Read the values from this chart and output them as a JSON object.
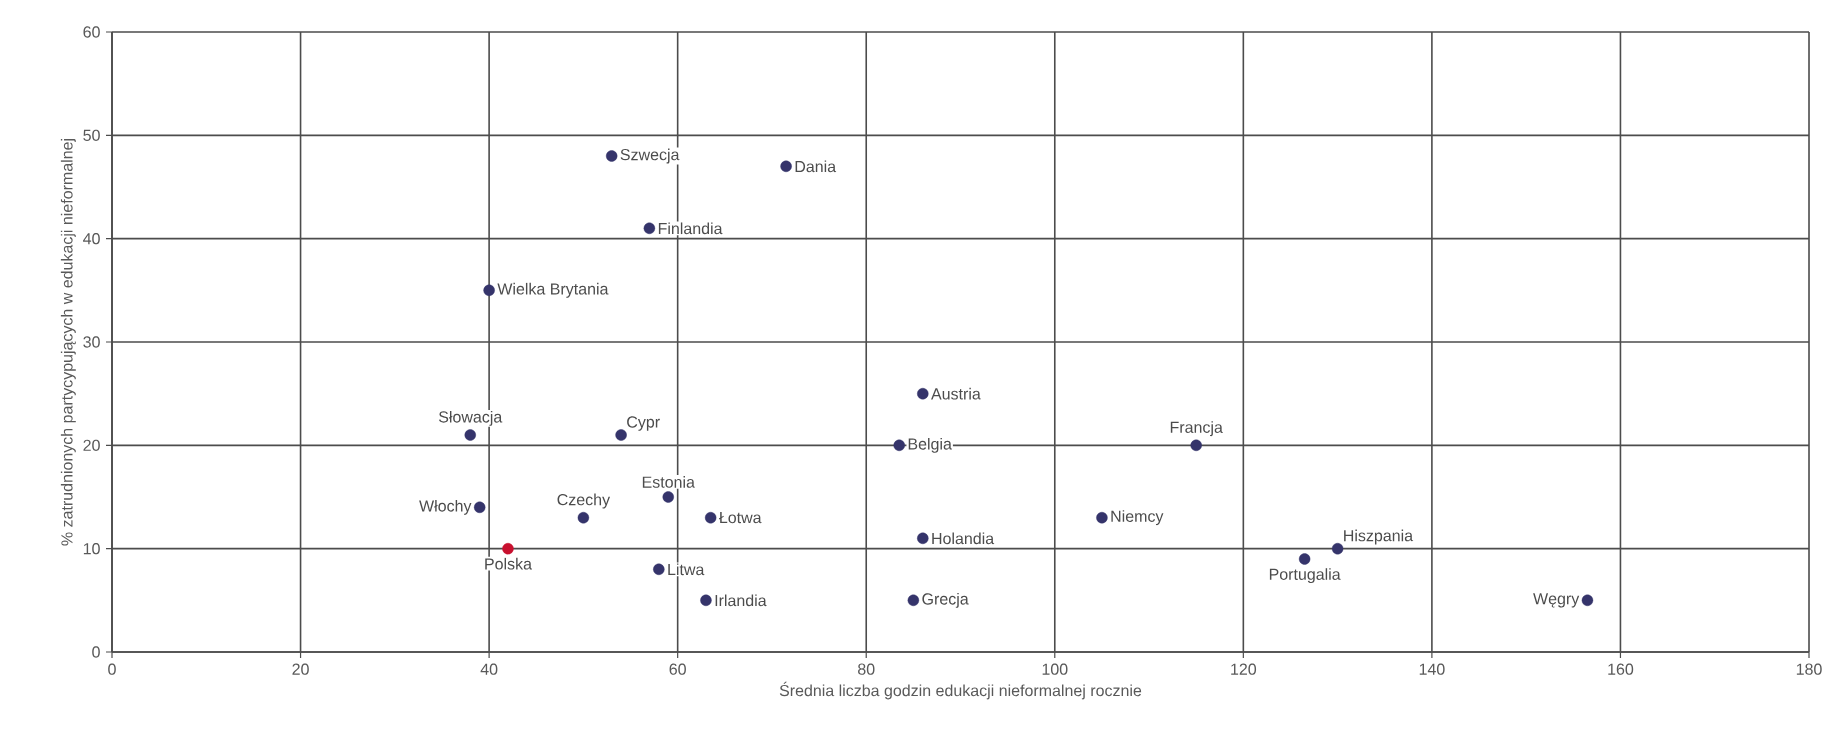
{
  "chart_data": {
    "type": "scatter",
    "xlabel": "Średnia liczba godzin edukacji nieformalnej rocznie",
    "ylabel": "% zatrudnionych partycypujących w edukacji nieformalnej",
    "x": [
      53,
      71.5,
      57,
      40,
      38,
      54,
      39,
      42,
      50,
      59,
      63.5,
      58,
      63,
      86,
      83.5,
      115,
      105,
      86,
      85,
      126.5,
      130,
      156.5
    ],
    "values": [
      48,
      47,
      41,
      35,
      21,
      21,
      14,
      10,
      13,
      15,
      13,
      8,
      5,
      25,
      20,
      20,
      13,
      11,
      5,
      9,
      10,
      5
    ],
    "colors": [
      "#35346b",
      "#35346b",
      "#35346b",
      "#35346b",
      "#35346b",
      "#35346b",
      "#35346b",
      "#c8102e",
      "#35346b",
      "#35346b",
      "#35346b",
      "#35346b",
      "#35346b",
      "#35346b",
      "#35346b",
      "#35346b",
      "#35346b",
      "#35346b",
      "#35346b",
      "#35346b",
      "#35346b",
      "#35346b"
    ],
    "annotations": [
      {
        "text": "Szwecja",
        "x": 53,
        "y": 48
      },
      {
        "text": "Dania",
        "x": 71.5,
        "y": 47
      },
      {
        "text": "Finlandia",
        "x": 57,
        "y": 41
      },
      {
        "text": "Wielka Brytania",
        "x": 40,
        "y": 35
      },
      {
        "text": "Słowacja",
        "x": 38,
        "y": 21
      },
      {
        "text": "Cypr",
        "x": 54,
        "y": 21
      },
      {
        "text": "Włochy",
        "x": 39,
        "y": 14
      },
      {
        "text": "Polska",
        "x": 42,
        "y": 10
      },
      {
        "text": "Czechy",
        "x": 50,
        "y": 13
      },
      {
        "text": "Estonia",
        "x": 59,
        "y": 15
      },
      {
        "text": "Łotwa",
        "x": 63.5,
        "y": 13
      },
      {
        "text": "Litwa",
        "x": 58,
        "y": 8
      },
      {
        "text": "Irlandia",
        "x": 63,
        "y": 5
      },
      {
        "text": "Austria",
        "x": 86,
        "y": 25
      },
      {
        "text": "Belgia",
        "x": 83.5,
        "y": 20
      },
      {
        "text": "Francja",
        "x": 115,
        "y": 20
      },
      {
        "text": "Niemcy",
        "x": 105,
        "y": 13
      },
      {
        "text": "Holandia",
        "x": 86,
        "y": 11
      },
      {
        "text": "Grecja",
        "x": 85,
        "y": 5
      },
      {
        "text": "Portugalia",
        "x": 126.5,
        "y": 9
      },
      {
        "text": "Hiszpania",
        "x": 130,
        "y": 10
      },
      {
        "text": "Węgry",
        "x": 156.5,
        "y": 5
      }
    ],
    "xlim": [
      0,
      180
    ],
    "xticks": [
      0,
      20,
      40,
      60,
      80,
      100,
      120,
      140,
      160,
      180
    ],
    "ylim": [
      0,
      60
    ],
    "yticks": [
      0,
      10,
      20,
      30,
      40,
      50,
      60
    ],
    "grid": true
  }
}
